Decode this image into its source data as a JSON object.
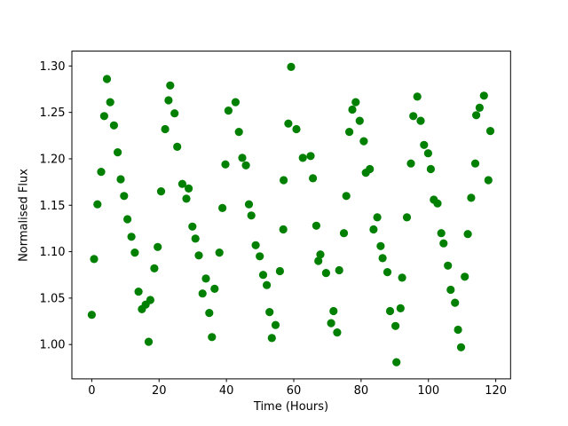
{
  "figure": {
    "background": "#ffffff",
    "text_color": "#000000",
    "axis_color": "#000000"
  },
  "chart_data": {
    "type": "scatter",
    "title": "",
    "xlabel": "Time (Hours)",
    "ylabel": "Normalised Flux",
    "legend": null,
    "grid": false,
    "marker": "circle",
    "marker_color": "#008000",
    "marker_radius_px": 4.6,
    "xlim": [
      -5.9,
      124.4
    ],
    "ylim": [
      0.963,
      1.316
    ],
    "xticks": [
      0,
      20,
      40,
      60,
      80,
      100,
      120
    ],
    "yticks": [
      1.0,
      1.05,
      1.1,
      1.15,
      1.2,
      1.25,
      1.3
    ],
    "points": [
      [
        0.0,
        1.032
      ],
      [
        0.7,
        1.092
      ],
      [
        1.7,
        1.151
      ],
      [
        2.8,
        1.186
      ],
      [
        3.7,
        1.246
      ],
      [
        4.5,
        1.286
      ],
      [
        5.5,
        1.261
      ],
      [
        6.6,
        1.236
      ],
      [
        7.7,
        1.207
      ],
      [
        8.6,
        1.178
      ],
      [
        9.6,
        1.16
      ],
      [
        10.6,
        1.135
      ],
      [
        11.8,
        1.116
      ],
      [
        12.8,
        1.099
      ],
      [
        13.9,
        1.057
      ],
      [
        14.9,
        1.038
      ],
      [
        16.0,
        1.043
      ],
      [
        16.9,
        1.003
      ],
      [
        17.4,
        1.048
      ],
      [
        18.6,
        1.082
      ],
      [
        19.6,
        1.105
      ],
      [
        20.6,
        1.165
      ],
      [
        21.8,
        1.232
      ],
      [
        22.8,
        1.263
      ],
      [
        23.3,
        1.279
      ],
      [
        24.6,
        1.249
      ],
      [
        25.4,
        1.213
      ],
      [
        26.9,
        1.173
      ],
      [
        28.1,
        1.157
      ],
      [
        28.8,
        1.168
      ],
      [
        29.9,
        1.127
      ],
      [
        30.8,
        1.114
      ],
      [
        31.8,
        1.096
      ],
      [
        32.9,
        1.055
      ],
      [
        33.9,
        1.071
      ],
      [
        34.9,
        1.034
      ],
      [
        35.7,
        1.008
      ],
      [
        36.5,
        1.06
      ],
      [
        37.9,
        1.099
      ],
      [
        38.8,
        1.147
      ],
      [
        39.7,
        1.194
      ],
      [
        40.6,
        1.252
      ],
      [
        42.7,
        1.261
      ],
      [
        43.7,
        1.229
      ],
      [
        44.7,
        1.201
      ],
      [
        45.8,
        1.193
      ],
      [
        46.7,
        1.151
      ],
      [
        47.4,
        1.139
      ],
      [
        48.7,
        1.107
      ],
      [
        49.9,
        1.095
      ],
      [
        50.9,
        1.075
      ],
      [
        52.0,
        1.064
      ],
      [
        52.8,
        1.035
      ],
      [
        53.5,
        1.007
      ],
      [
        54.6,
        1.021
      ],
      [
        55.9,
        1.079
      ],
      [
        56.9,
        1.124
      ],
      [
        57.0,
        1.177
      ],
      [
        58.4,
        1.238
      ],
      [
        59.2,
        1.299
      ],
      [
        60.8,
        1.232
      ],
      [
        62.7,
        1.201
      ],
      [
        65.0,
        1.203
      ],
      [
        65.7,
        1.179
      ],
      [
        66.7,
        1.128
      ],
      [
        67.3,
        1.09
      ],
      [
        67.9,
        1.097
      ],
      [
        69.6,
        1.077
      ],
      [
        71.1,
        1.023
      ],
      [
        71.8,
        1.036
      ],
      [
        72.9,
        1.013
      ],
      [
        73.5,
        1.08
      ],
      [
        74.9,
        1.12
      ],
      [
        75.6,
        1.16
      ],
      [
        76.5,
        1.229
      ],
      [
        77.4,
        1.253
      ],
      [
        78.4,
        1.261
      ],
      [
        79.6,
        1.241
      ],
      [
        80.8,
        1.219
      ],
      [
        81.4,
        1.185
      ],
      [
        82.6,
        1.189
      ],
      [
        83.7,
        1.124
      ],
      [
        84.8,
        1.137
      ],
      [
        85.8,
        1.106
      ],
      [
        86.4,
        1.093
      ],
      [
        87.8,
        1.078
      ],
      [
        88.6,
        1.036
      ],
      [
        90.2,
        1.02
      ],
      [
        90.5,
        0.981
      ],
      [
        91.7,
        1.039
      ],
      [
        92.2,
        1.072
      ],
      [
        93.6,
        1.137
      ],
      [
        94.8,
        1.195
      ],
      [
        95.5,
        1.246
      ],
      [
        96.7,
        1.267
      ],
      [
        97.7,
        1.241
      ],
      [
        98.7,
        1.215
      ],
      [
        99.9,
        1.206
      ],
      [
        100.7,
        1.189
      ],
      [
        101.6,
        1.156
      ],
      [
        102.7,
        1.152
      ],
      [
        103.8,
        1.12
      ],
      [
        104.5,
        1.109
      ],
      [
        105.8,
        1.085
      ],
      [
        106.6,
        1.059
      ],
      [
        107.9,
        1.045
      ],
      [
        108.8,
        1.016
      ],
      [
        109.7,
        0.997
      ],
      [
        110.8,
        1.073
      ],
      [
        111.7,
        1.119
      ],
      [
        112.7,
        1.158
      ],
      [
        113.9,
        1.195
      ],
      [
        114.2,
        1.247
      ],
      [
        115.2,
        1.255
      ],
      [
        116.5,
        1.268
      ],
      [
        117.8,
        1.177
      ],
      [
        118.4,
        1.23
      ]
    ]
  }
}
